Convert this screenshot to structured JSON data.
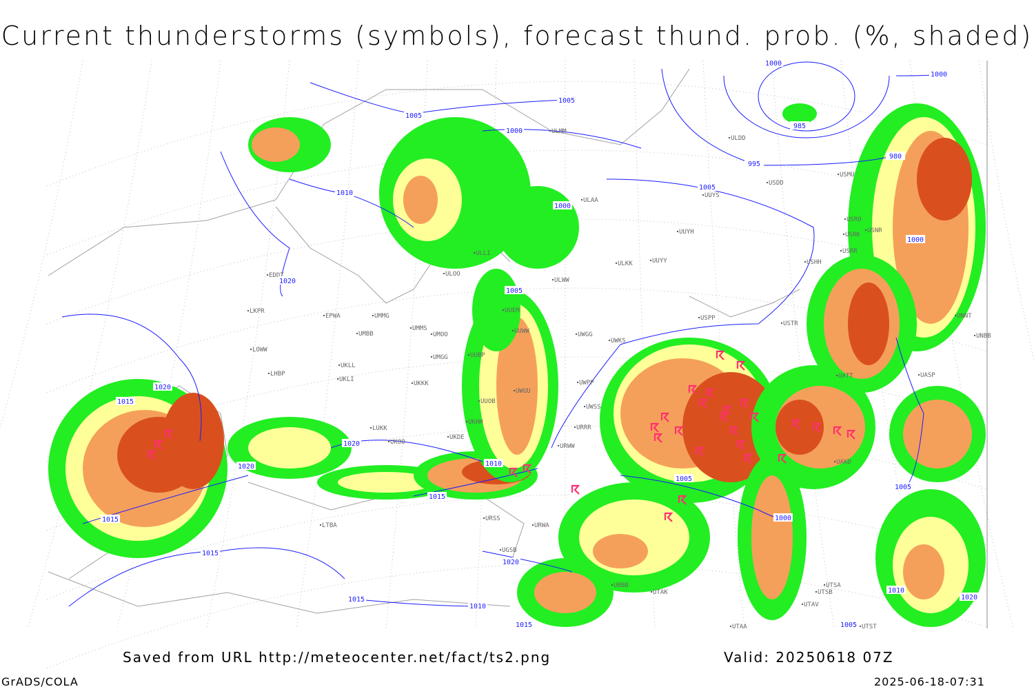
{
  "title": "Current thunderstorms (symbols), forecast thund. prob. (%, shaded)",
  "footer": {
    "saved_from": "Saved from URL http://meteocenter.net/fact/ts2.png",
    "valid": "Valid: 20250618 07Z",
    "software": "GrADS/COLA",
    "timestamp": "2025-06-18-07:31"
  },
  "colors": {
    "prob_low": "#22ee22",
    "prob_mid": "#ffff99",
    "prob_high": "#f5a05a",
    "prob_very_high": "#d9501e",
    "thunderstorm_symbol": "#ff3070",
    "isobar": "#1a1aff",
    "coastline": "#a0a0a0"
  },
  "isobar_labels": [
    "1005",
    "1000",
    "985",
    "980",
    "995",
    "1000",
    "1010",
    "1000",
    "1005",
    "1000",
    "1005",
    "1020",
    "1005",
    "1020",
    "1015",
    "1020",
    "1015",
    "1010",
    "1015",
    "1005",
    "1000",
    "1005",
    "1015",
    "1020",
    "1010",
    "1015",
    "1010",
    "1015",
    "1005",
    "1020",
    "1020",
    "1000"
  ],
  "stations": [
    "ULMM",
    "ULDD",
    "USDD",
    "USMU",
    "ULAA",
    "UUYS",
    "USRO",
    "USRK",
    "USNR",
    "UUYH",
    "USRR",
    "ULKK",
    "UUYY",
    "USHH",
    "ULLI",
    "ULOO",
    "ULWW",
    "EDDT",
    "UMMG",
    "EPWA",
    "UUEM",
    "LKPR",
    "UMMS",
    "UMOO",
    "UMBB",
    "UUWW",
    "UWGG",
    "UWKS",
    "USPP",
    "USTR",
    "LOWW",
    "UMGG",
    "UUBP",
    "UKLL",
    "UKLI",
    "LHBP",
    "UKKK",
    "UWUU",
    "UWPP",
    "UWSS",
    "UUOB",
    "LUKK",
    "UKHH",
    "UKOO",
    "UKDE",
    "URRR",
    "URWW",
    "UATT",
    "UASP",
    "UNNT",
    "UNBB",
    "UAKD",
    "URSS",
    "URWA",
    "LTBA",
    "UGSB",
    "UBBB",
    "UTAK",
    "UTSA",
    "UTSB",
    "UTAV",
    "UTAA",
    "UTST"
  ]
}
